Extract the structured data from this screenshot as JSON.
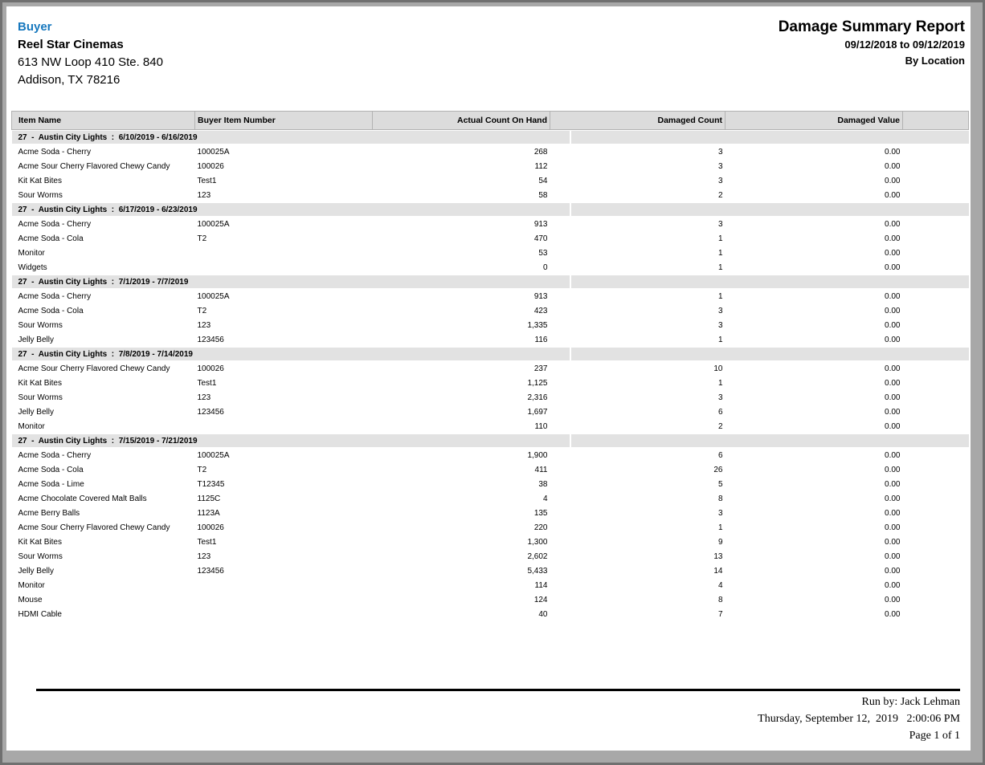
{
  "colors": {
    "accent_blue": "#1778be",
    "header_band": "#dcdcdc",
    "group_band": "#e2e2e2"
  },
  "header": {
    "buyer_label": "Buyer",
    "company": "Reel Star Cinemas",
    "address_line1": "613 NW Loop 410 Ste. 840",
    "address_line2": "Addison, TX 78216",
    "report_title": "Damage Summary Report",
    "date_range": "09/12/2018 to 09/12/2019",
    "grouping": "By Location"
  },
  "table": {
    "columns": [
      "Item Name",
      "Buyer Item Number",
      "Actual Count On Hand",
      "Damaged Count",
      "Damaged Value",
      ""
    ],
    "groups": [
      {
        "label": "27  -  Austin City Lights  :  6/10/2019 - 6/16/2019",
        "rows": [
          [
            "Acme Soda - Cherry",
            "100025A",
            "268",
            "3",
            "0.00"
          ],
          [
            "Acme Sour Cherry Flavored Chewy Candy",
            "100026",
            "112",
            "3",
            "0.00"
          ],
          [
            "Kit Kat Bites",
            "Test1",
            "54",
            "3",
            "0.00"
          ],
          [
            "Sour Worms",
            "123",
            "58",
            "2",
            "0.00"
          ]
        ]
      },
      {
        "label": "27  -  Austin City Lights  :  6/17/2019 - 6/23/2019",
        "rows": [
          [
            "Acme Soda - Cherry",
            "100025A",
            "913",
            "3",
            "0.00"
          ],
          [
            "Acme Soda - Cola",
            "T2",
            "470",
            "1",
            "0.00"
          ],
          [
            "Monitor",
            "",
            "53",
            "1",
            "0.00"
          ],
          [
            "Widgets",
            "",
            "0",
            "1",
            "0.00"
          ]
        ]
      },
      {
        "label": "27  -  Austin City Lights  :  7/1/2019 - 7/7/2019",
        "rows": [
          [
            "Acme Soda - Cherry",
            "100025A",
            "913",
            "1",
            "0.00"
          ],
          [
            "Acme Soda - Cola",
            "T2",
            "423",
            "3",
            "0.00"
          ],
          [
            "Sour Worms",
            "123",
            "1,335",
            "3",
            "0.00"
          ],
          [
            "Jelly Belly",
            "123456",
            "116",
            "1",
            "0.00"
          ]
        ]
      },
      {
        "label": "27  -  Austin City Lights  :  7/8/2019 - 7/14/2019",
        "rows": [
          [
            "Acme Sour Cherry Flavored Chewy Candy",
            "100026",
            "237",
            "10",
            "0.00"
          ],
          [
            "Kit Kat Bites",
            "Test1",
            "1,125",
            "1",
            "0.00"
          ],
          [
            "Sour Worms",
            "123",
            "2,316",
            "3",
            "0.00"
          ],
          [
            "Jelly Belly",
            "123456",
            "1,697",
            "6",
            "0.00"
          ],
          [
            "Monitor",
            "",
            "110",
            "2",
            "0.00"
          ]
        ]
      },
      {
        "label": "27  -  Austin City Lights  :  7/15/2019 - 7/21/2019",
        "rows": [
          [
            "Acme Soda - Cherry",
            "100025A",
            "1,900",
            "6",
            "0.00"
          ],
          [
            "Acme Soda - Cola",
            "T2",
            "411",
            "26",
            "0.00"
          ],
          [
            "Acme Soda - Lime",
            "T12345",
            "38",
            "5",
            "0.00"
          ],
          [
            "Acme Chocolate Covered Malt Balls",
            "1125C",
            "4",
            "8",
            "0.00"
          ],
          [
            "Acme Berry Balls",
            "1123A",
            "135",
            "3",
            "0.00"
          ],
          [
            "Acme Sour Cherry Flavored Chewy Candy",
            "100026",
            "220",
            "1",
            "0.00"
          ],
          [
            "Kit Kat Bites",
            "Test1",
            "1,300",
            "9",
            "0.00"
          ],
          [
            "Sour Worms",
            "123",
            "2,602",
            "13",
            "0.00"
          ],
          [
            "Jelly Belly",
            "123456",
            "5,433",
            "14",
            "0.00"
          ],
          [
            "Monitor",
            "",
            "114",
            "4",
            "0.00"
          ],
          [
            "Mouse",
            "",
            "124",
            "8",
            "0.00"
          ],
          [
            "HDMI Cable",
            "",
            "40",
            "7",
            "0.00"
          ]
        ]
      }
    ]
  },
  "footer": {
    "run_by": "Run by: Jack Lehman",
    "datetime": "Thursday, September 12,  2019   2:00:06 PM",
    "page": "Page 1 of 1"
  }
}
